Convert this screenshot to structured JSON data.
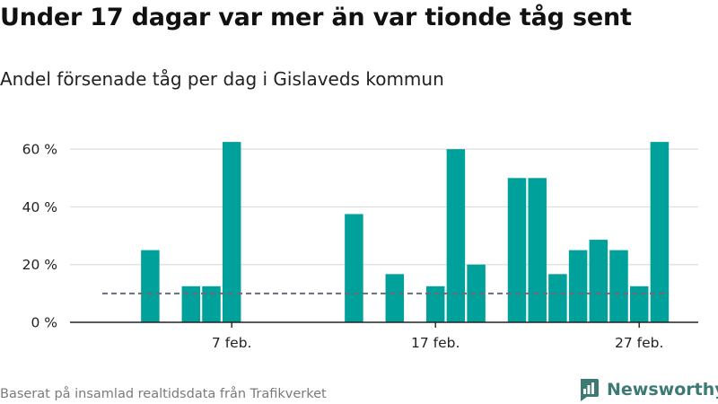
{
  "title": "Under 17 dagar var mer än var tionde tåg sent",
  "subtitle": "Andel försenade tåg per dag i Gislaveds kommun",
  "source": "Baserat på insamlad realtidsdata från Trafikverket",
  "brand": "Newsworthy",
  "colors": {
    "bar": "#00a19a",
    "reference_line": "#6b6b7b",
    "grid": "#dddddd",
    "axis": "#222222",
    "brand": "#3c7a73"
  },
  "chart_data": {
    "type": "bar",
    "x": [
      "2/1",
      "2/2",
      "2/3",
      "2/4",
      "2/5",
      "2/6",
      "2/7",
      "2/8",
      "2/9",
      "2/10",
      "2/11",
      "2/12",
      "2/13",
      "2/14",
      "2/15",
      "2/16",
      "2/17",
      "2/18",
      "2/19",
      "2/20",
      "2/21",
      "2/22",
      "2/23",
      "2/24",
      "2/25",
      "2/26",
      "2/27",
      "2/28"
    ],
    "values": [
      0,
      0,
      25,
      0,
      12.5,
      12.5,
      62.5,
      0,
      0,
      0,
      0,
      0,
      37.5,
      0,
      16.7,
      0,
      12.5,
      60,
      20,
      0,
      50,
      50,
      16.7,
      25,
      28.6,
      25,
      12.5,
      62.5
    ],
    "reference_line": {
      "value": 10,
      "style": "dashed"
    },
    "ylim": [
      0,
      70
    ],
    "yticks": [
      0,
      20,
      40,
      60
    ],
    "ytick_labels": [
      "0 %",
      "20 %",
      "40 %",
      "60 %"
    ],
    "xticks": [
      {
        "x": "2/7",
        "label": "7 feb."
      },
      {
        "x": "2/17",
        "label": "17 feb."
      },
      {
        "x": "2/27",
        "label": "27 feb."
      }
    ],
    "xlabel": "",
    "ylabel": "",
    "grid": true,
    "legend": false
  }
}
